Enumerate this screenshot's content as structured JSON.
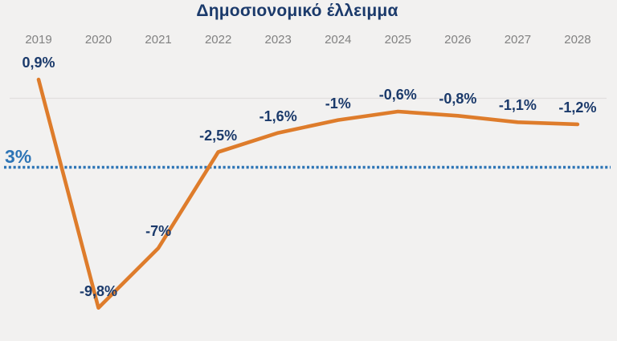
{
  "chart_data": {
    "type": "line",
    "title": "Δημοσιονομικό έλλειμμα",
    "categories": [
      "2019",
      "2020",
      "2021",
      "2022",
      "2023",
      "2024",
      "2025",
      "2026",
      "2027",
      "2028"
    ],
    "values": [
      0.9,
      -9.8,
      -7,
      -2.5,
      -1.6,
      -1,
      -0.6,
      -0.8,
      -1.1,
      -1.2
    ],
    "labels": [
      "0,9%",
      "-9,8%",
      "-7%",
      "-2,5%",
      "-1,6%",
      "-1%",
      "-0,6%",
      "-0,8%",
      "-1,1%",
      "-1,2%"
    ],
    "threshold": {
      "label": "3%",
      "value": -3
    },
    "xlabel": "",
    "ylabel": "",
    "ylim": [
      -10.5,
      1.5
    ],
    "x_axis_position": "top",
    "grid": "zero-line-only",
    "legend": "none",
    "colors": {
      "line": "#DE7C2B",
      "threshold": "#2E75B6",
      "data_label": "#1B3A6B",
      "axis_label": "#818181",
      "grid_line": "#E1DFDD",
      "background": "#F2F1F0"
    }
  }
}
